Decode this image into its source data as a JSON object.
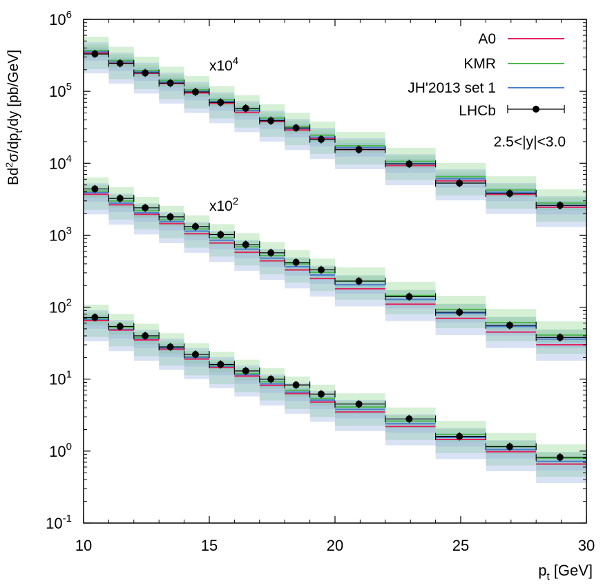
{
  "chart_data": {
    "type": "line",
    "xlabel_main": "p",
    "xlabel_sub": "t",
    "xlabel_rest": " [GeV]",
    "ylabel_parts": {
      "a": "Bd",
      "b": "2",
      "c": "σ/dp",
      "d": "t",
      "e": "/dy [pb/GeV]"
    },
    "xlim": [
      10,
      30
    ],
    "ylim_log10": [
      -1,
      6
    ],
    "x_ticks": [
      {
        "value": 10,
        "label": "10"
      },
      {
        "value": 15,
        "label": "15"
      },
      {
        "value": 20,
        "label": "20"
      },
      {
        "value": 25,
        "label": "25"
      },
      {
        "value": 30,
        "label": "30"
      }
    ],
    "y_ticks": [
      {
        "exp": -1,
        "base": "10",
        "sup": "-1"
      },
      {
        "exp": 0,
        "base": "10",
        "sup": "0"
      },
      {
        "exp": 1,
        "base": "10",
        "sup": "1"
      },
      {
        "exp": 2,
        "base": "10",
        "sup": "2"
      },
      {
        "exp": 3,
        "base": "10",
        "sup": "3"
      },
      {
        "exp": 4,
        "base": "10",
        "sup": "4"
      },
      {
        "exp": 5,
        "base": "10",
        "sup": "5"
      },
      {
        "exp": 6,
        "base": "10",
        "sup": "6"
      }
    ],
    "rapidity_label": "2.5<|y|<3.0",
    "scale_labels": [
      {
        "base": "x10",
        "sup": "4"
      },
      {
        "base": "x10",
        "sup": "2"
      }
    ],
    "legend": [
      {
        "name": "A0",
        "color": "#e0245e",
        "type": "line"
      },
      {
        "name": "KMR",
        "color": "#4db84d",
        "type": "line"
      },
      {
        "name": "JH'2013 set 1",
        "color": "#4a7fd0",
        "type": "line"
      },
      {
        "name": "LHCb",
        "color": "#000000",
        "type": "errorbar"
      }
    ],
    "bin_edges": [
      10,
      11,
      12,
      13,
      14,
      15,
      16,
      17,
      18,
      19,
      20,
      22,
      24,
      26,
      28,
      30
    ],
    "band_colors": {
      "green": "#7fcf7f",
      "blue": "#8aa6dc"
    },
    "series": [
      {
        "name": "bottom (x1)",
        "data_x": [
          10.45,
          11.45,
          12.45,
          13.45,
          14.45,
          15.45,
          16.45,
          17.45,
          18.45,
          19.45,
          20.95,
          22.95,
          24.95,
          26.95,
          28.95
        ],
        "data_y": [
          72,
          54,
          40,
          28,
          22,
          16,
          13,
          10,
          8.3,
          6.2,
          4.5,
          2.8,
          1.6,
          1.15,
          0.82
        ],
        "A0": [
          65,
          48,
          35,
          26,
          19,
          14.5,
          11,
          8.2,
          6.3,
          4.8,
          3.5,
          2.2,
          1.45,
          0.98,
          0.66
        ],
        "KMR": [
          70,
          52,
          38,
          28,
          20.5,
          15.5,
          12,
          9.2,
          7,
          5.4,
          4.1,
          2.6,
          1.7,
          1.15,
          0.8
        ],
        "JH": [
          67,
          49,
          36,
          27,
          20,
          15,
          11.5,
          8.6,
          6.6,
          5.1,
          3.8,
          2.4,
          1.55,
          1.05,
          0.72
        ]
      },
      {
        "name": "middle (x10^2)",
        "data_x": [
          10.45,
          11.45,
          12.45,
          13.45,
          14.45,
          15.45,
          16.45,
          17.45,
          18.45,
          19.45,
          20.95,
          22.95,
          24.95,
          26.95,
          28.95
        ],
        "data_y": [
          4400,
          3250,
          2400,
          1800,
          1320,
          1020,
          740,
          570,
          420,
          330,
          230,
          140,
          85,
          56,
          38
        ],
        "A0": [
          3700,
          2650,
          1950,
          1450,
          1050,
          780,
          580,
          440,
          330,
          250,
          180,
          110,
          70,
          45,
          30
        ],
        "KMR": [
          4100,
          3000,
          2200,
          1650,
          1220,
          920,
          690,
          520,
          400,
          305,
          230,
          145,
          93,
          61,
          41
        ],
        "JH": [
          3900,
          2800,
          2050,
          1550,
          1140,
          850,
          640,
          480,
          365,
          280,
          205,
          128,
          82,
          54,
          36
        ]
      },
      {
        "name": "top (x10^4)",
        "data_x": [
          10.45,
          11.45,
          12.45,
          13.45,
          14.45,
          15.45,
          16.45,
          17.45,
          18.45,
          19.45,
          20.95,
          22.95,
          24.95,
          26.95,
          28.95
        ],
        "data_y": [
          330000,
          245000,
          180000,
          130000,
          98000,
          70000,
          58000,
          39000,
          31000,
          21500,
          15500,
          9800,
          5300,
          3800,
          2600
        ],
        "A0": [
          340000,
          245000,
          178000,
          128000,
          95000,
          68000,
          51000,
          38000,
          29000,
          22000,
          15500,
          9300,
          5700,
          3700,
          2450
        ],
        "KMR": [
          370000,
          268000,
          195000,
          142000,
          105000,
          76000,
          57000,
          42500,
          32500,
          24500,
          17500,
          10600,
          6500,
          4250,
          2800
        ],
        "JH": [
          355000,
          255000,
          186000,
          135000,
          100000,
          72000,
          54000,
          40000,
          30500,
          23000,
          16500,
          9900,
          6100,
          3950,
          2600
        ]
      }
    ]
  }
}
